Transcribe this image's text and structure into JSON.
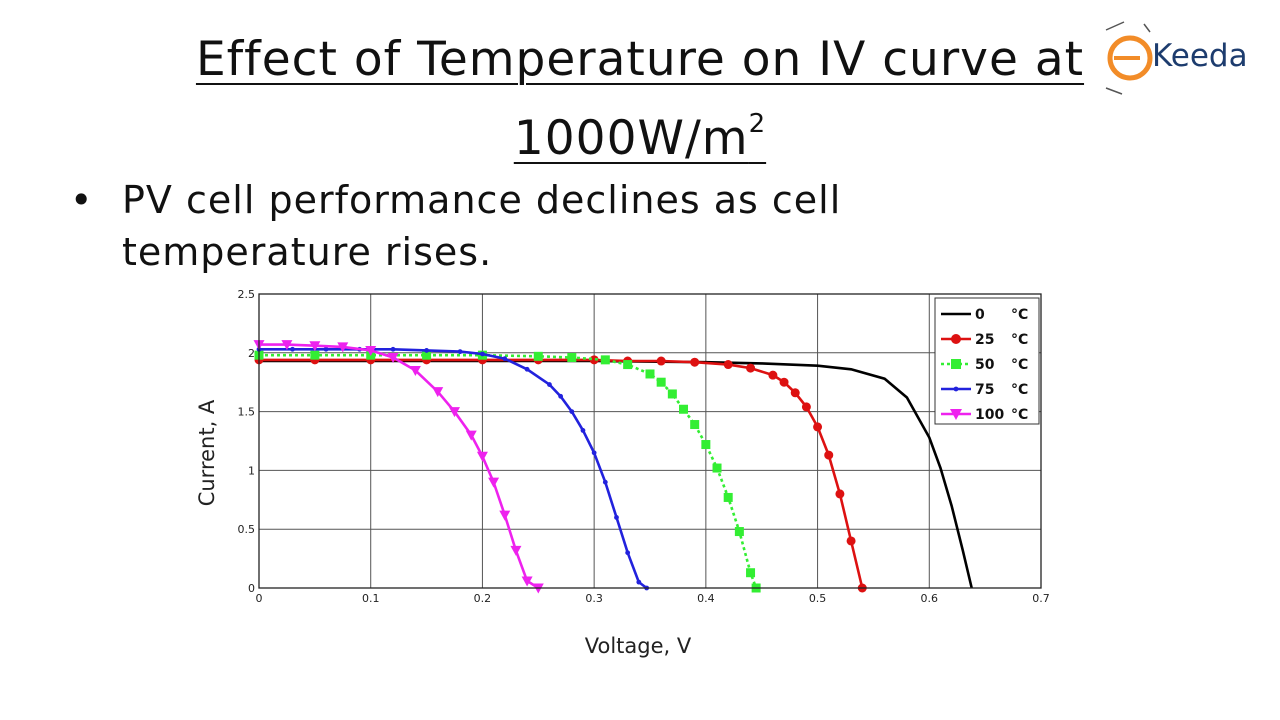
{
  "slide": {
    "title_line1": "Effect of Temperature on IV curve at",
    "title_line2": "1000W/m",
    "title_sup": "2",
    "bullet": "PV cell performance declines as cell temperature rises."
  },
  "logo": {
    "name": "Keeda",
    "accent_color": "#f28c28",
    "brand_color": "#1d3c6e"
  },
  "chart_data": {
    "type": "line",
    "xlabel": "Voltage, V",
    "ylabel": "Current, A",
    "xlim": [
      0,
      0.7
    ],
    "ylim": [
      0,
      2.5
    ],
    "xticks": [
      "0",
      "0.1",
      "0.2",
      "0.3",
      "0.4",
      "0.5",
      "0.6",
      "0.7"
    ],
    "yticks": [
      "0",
      "0.5",
      "1",
      "1.5",
      "2",
      "2.5"
    ],
    "grid": true,
    "legend_position": "top-right",
    "series": [
      {
        "name": "0",
        "unit": "°C",
        "color": "#000000",
        "marker": "none",
        "x": [
          0,
          0.1,
          0.2,
          0.3,
          0.4,
          0.45,
          0.5,
          0.53,
          0.56,
          0.58,
          0.6,
          0.61,
          0.62,
          0.63,
          0.638
        ],
        "y": [
          1.93,
          1.93,
          1.93,
          1.93,
          1.92,
          1.91,
          1.89,
          1.86,
          1.78,
          1.62,
          1.28,
          1.02,
          0.7,
          0.32,
          0
        ]
      },
      {
        "name": "25",
        "unit": "°C",
        "color": "#dd1111",
        "marker": "circle",
        "x": [
          0,
          0.05,
          0.1,
          0.15,
          0.2,
          0.25,
          0.3,
          0.33,
          0.36,
          0.39,
          0.42,
          0.44,
          0.46,
          0.47,
          0.48,
          0.49,
          0.5,
          0.51,
          0.52,
          0.53,
          0.54
        ],
        "y": [
          1.94,
          1.94,
          1.94,
          1.94,
          1.94,
          1.94,
          1.94,
          1.93,
          1.93,
          1.92,
          1.9,
          1.87,
          1.81,
          1.75,
          1.66,
          1.54,
          1.37,
          1.13,
          0.8,
          0.4,
          0
        ]
      },
      {
        "name": "50",
        "unit": "°C",
        "color": "#33ee33",
        "marker": "square",
        "x": [
          0,
          0.05,
          0.1,
          0.15,
          0.2,
          0.25,
          0.28,
          0.31,
          0.33,
          0.35,
          0.36,
          0.37,
          0.38,
          0.39,
          0.4,
          0.41,
          0.42,
          0.43,
          0.44,
          0.445
        ],
        "y": [
          1.98,
          1.98,
          1.98,
          1.98,
          1.98,
          1.97,
          1.96,
          1.94,
          1.9,
          1.82,
          1.75,
          1.65,
          1.52,
          1.39,
          1.22,
          1.02,
          0.77,
          0.48,
          0.13,
          0
        ]
      },
      {
        "name": "75",
        "unit": "°C",
        "color": "#2222dd",
        "marker": "dot",
        "x": [
          0,
          0.03,
          0.06,
          0.09,
          0.12,
          0.15,
          0.18,
          0.2,
          0.22,
          0.24,
          0.26,
          0.27,
          0.28,
          0.29,
          0.3,
          0.31,
          0.32,
          0.33,
          0.34,
          0.347
        ],
        "y": [
          2.03,
          2.03,
          2.03,
          2.03,
          2.03,
          2.02,
          2.01,
          1.99,
          1.95,
          1.86,
          1.73,
          1.63,
          1.5,
          1.34,
          1.15,
          0.9,
          0.6,
          0.3,
          0.05,
          0
        ]
      },
      {
        "name": "100",
        "unit": "°C",
        "color": "#ee22ee",
        "marker": "triangle-down",
        "x": [
          0,
          0.025,
          0.05,
          0.075,
          0.1,
          0.12,
          0.14,
          0.16,
          0.175,
          0.19,
          0.2,
          0.21,
          0.22,
          0.23,
          0.24,
          0.25
        ],
        "y": [
          2.07,
          2.07,
          2.06,
          2.05,
          2.02,
          1.96,
          1.85,
          1.67,
          1.5,
          1.3,
          1.12,
          0.9,
          0.62,
          0.32,
          0.06,
          0
        ]
      }
    ]
  }
}
